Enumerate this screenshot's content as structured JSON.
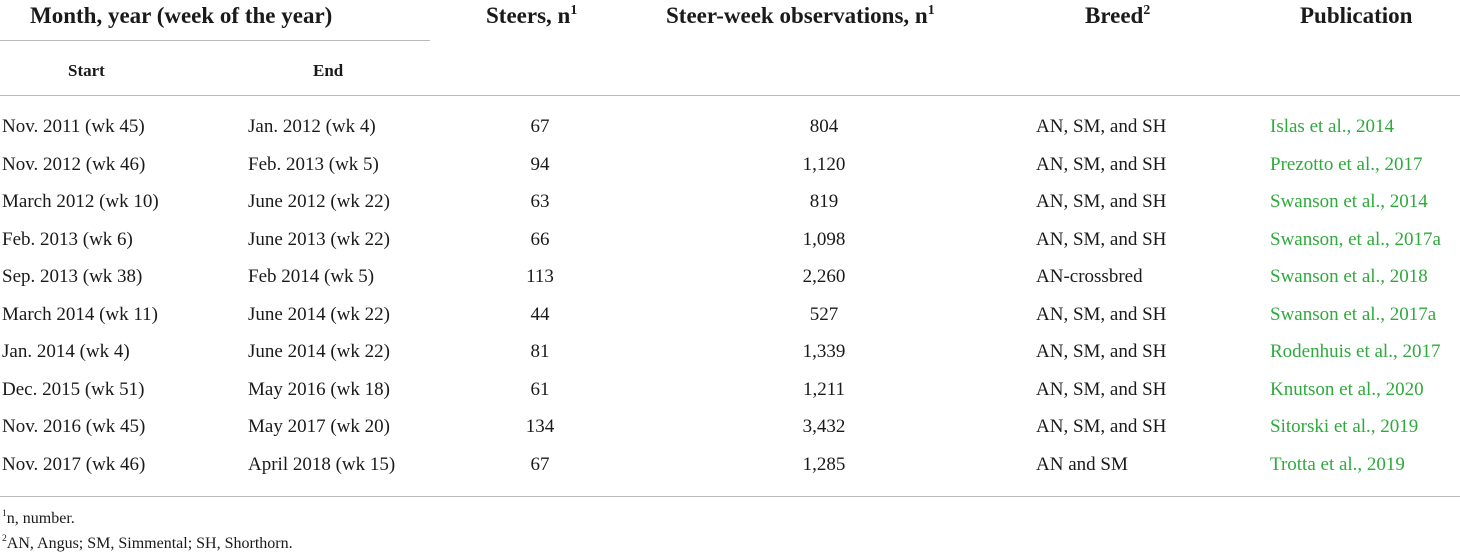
{
  "headers": {
    "period": "Month, year (week of the year)",
    "start": "Start",
    "end": "End",
    "steers": "Steers, n",
    "steers_sup": "1",
    "observations": "Steer-week observations, n",
    "observations_sup": "1",
    "breed": "Breed",
    "breed_sup": "2",
    "publication": "Publication"
  },
  "rows": [
    {
      "start": "Nov. 2011 (wk 45)",
      "end": "Jan. 2012 (wk 4)",
      "steers": "67",
      "observations": "804",
      "breed": "AN, SM, and SH",
      "publication": "Islas et al., 2014"
    },
    {
      "start": "Nov. 2012 (wk 46)",
      "end": "Feb. 2013 (wk 5)",
      "steers": "94",
      "observations": "1,120",
      "breed": "AN, SM, and SH",
      "publication": "Prezotto et al., 2017"
    },
    {
      "start": "March 2012 (wk 10)",
      "end": "June 2012 (wk 22)",
      "steers": "63",
      "observations": "819",
      "breed": "AN, SM, and SH",
      "publication": "Swanson et al., 2014"
    },
    {
      "start": "Feb. 2013 (wk 6)",
      "end": "June 2013 (wk 22)",
      "steers": "66",
      "observations": "1,098",
      "breed": "AN, SM, and SH",
      "publication": "Swanson, et al., 2017a"
    },
    {
      "start": "Sep. 2013 (wk 38)",
      "end": "Feb 2014 (wk 5)",
      "steers": "113",
      "observations": "2,260",
      "breed": "AN-crossbred",
      "publication": "Swanson et al., 2018"
    },
    {
      "start": "March 2014 (wk 11)",
      "end": "June 2014 (wk 22)",
      "steers": "44",
      "observations": "527",
      "breed": "AN, SM, and SH",
      "publication": "Swanson et al., 2017a"
    },
    {
      "start": "Jan. 2014 (wk 4)",
      "end": "June 2014 (wk 22)",
      "steers": "81",
      "observations": "1,339",
      "breed": "AN, SM, and SH",
      "publication": "Rodenhuis et al., 2017"
    },
    {
      "start": "Dec. 2015 (wk 51)",
      "end": "May 2016 (wk 18)",
      "steers": "61",
      "observations": "1,211",
      "breed": "AN, SM, and SH",
      "publication": "Knutson et al., 2020"
    },
    {
      "start": "Nov. 2016 (wk 45)",
      "end": "May 2017 (wk 20)",
      "steers": "134",
      "observations": "3,432",
      "breed": "AN, SM, and SH",
      "publication": "Sitorski et al., 2019"
    },
    {
      "start": "Nov. 2017 (wk 46)",
      "end": "April 2018 (wk 15)",
      "steers": "67",
      "observations": "1,285",
      "breed": "AN and SM",
      "publication": "Trotta et al., 2019"
    }
  ],
  "footnotes": [
    {
      "mark": "1",
      "text": "n, number."
    },
    {
      "mark": "2",
      "text": "AN, Angus; SM, Simmental; SH, Shorthorn."
    }
  ],
  "colors": {
    "link": "#2eaa3c",
    "rule": "#b9b9b9",
    "text": "#1a1a1a"
  }
}
